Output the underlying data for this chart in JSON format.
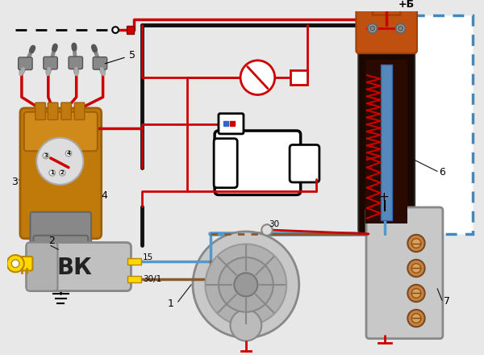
{
  "fig_width": 6.0,
  "fig_height": 4.4,
  "bg_color": "#e8e8e8",
  "colors": {
    "red": "#cc0000",
    "dark_red": "#880000",
    "black": "#111111",
    "brown": "#8B5A2B",
    "orange": "#D06010",
    "dark_orange": "#A04000",
    "gold": "#DAA520",
    "gray": "#999999",
    "light_gray": "#cccccc",
    "mid_gray": "#aaaaaa",
    "dark_gray": "#666666",
    "blue_dot": "#5599cc",
    "blue_dashed": "#4488bb",
    "white": "#ffffff",
    "yellow": "#FFD700",
    "dark_yellow": "#B8860B",
    "coil_dark": "#1a0800",
    "coil_orange": "#C05010",
    "dist_gold": "#C07A0A",
    "dist_body": "#A06008",
    "plug_gray": "#888888",
    "starter_outline": "#111111"
  },
  "xlim": [
    0,
    6.0
  ],
  "ylim": [
    0,
    4.4
  ]
}
